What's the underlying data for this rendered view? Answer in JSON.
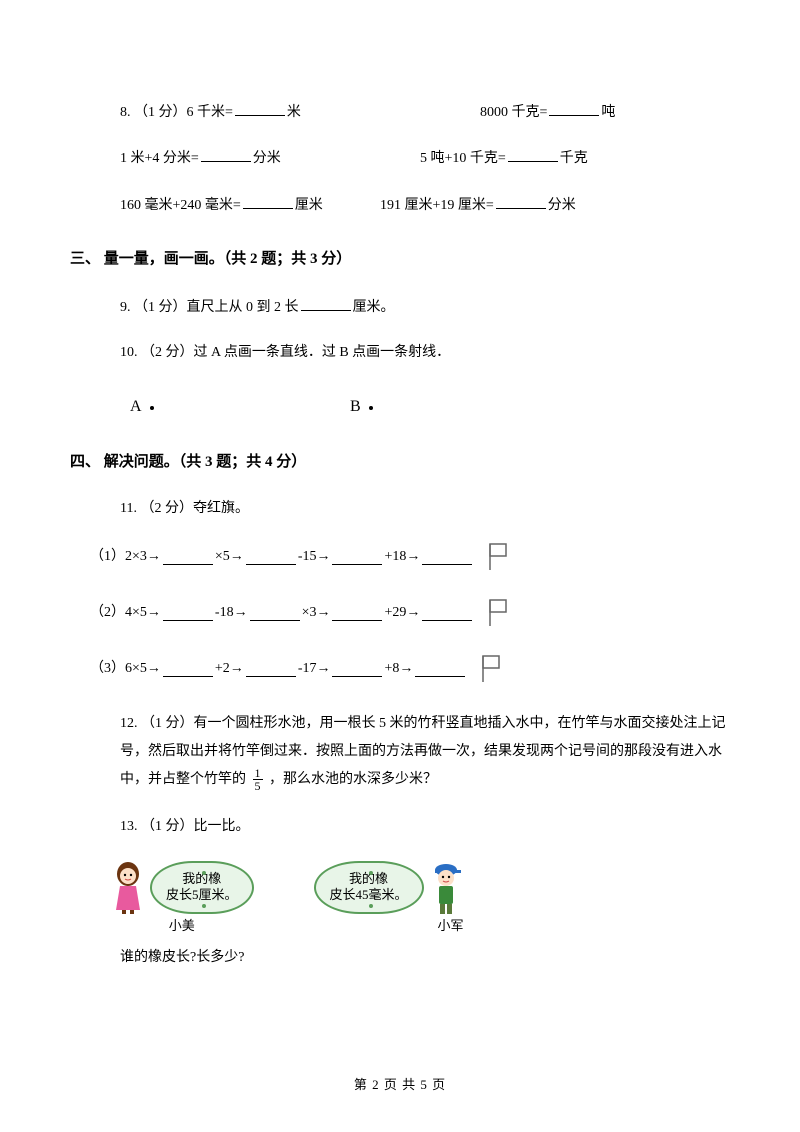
{
  "colors": {
    "text": "#000000",
    "background": "#ffffff",
    "bubble_fill": "#e8f5e8",
    "bubble_border": "#5a9e5a",
    "girl_hair": "#6b3410",
    "girl_dress": "#e85a9e",
    "boy_cap": "#2a6ec4",
    "boy_shirt": "#3a8a3a",
    "flag_stroke": "#666666"
  },
  "typography": {
    "body_fontsize": 14,
    "section_fontsize": 15,
    "section_weight": "bold",
    "font_family": "SimSun"
  },
  "q8": {
    "label": "8. （1 分）",
    "line1_a": "6 千米=",
    "line1_a_unit": "米",
    "line1_b": "8000 千克=",
    "line1_b_unit": "吨",
    "line2_a": "1 米+4 分米=",
    "line2_a_unit": "分米",
    "line2_b": "5 吨+10 千克=",
    "line2_b_unit": "千克",
    "line3_a": "160 毫米+240 毫米=",
    "line3_a_unit": "厘米",
    "line3_b": "191 厘米+19 厘米=",
    "line3_b_unit": "分米"
  },
  "section3": {
    "title": "三、 量一量，画一画。（共 2 题；共 3 分）",
    "q9": {
      "label": "9. （1 分）",
      "text_before": "直尺上从 0 到 2 长",
      "text_after": "厘米。"
    },
    "q10": {
      "label": "10. （2 分）",
      "text": "过 A 点画一条直线．过 B 点画一条射线．",
      "pointA": "A",
      "pointB": "B"
    }
  },
  "section4": {
    "title": "四、 解决问题。（共 3 题；共 4 分）",
    "q11": {
      "label": "11. （2 分）",
      "intro": "夺红旗。",
      "chains": [
        {
          "prefix": "（1）",
          "start": "2×3→",
          "ops": [
            "×5→",
            "-15→",
            "+18→"
          ]
        },
        {
          "prefix": "（2）",
          "start": "4×5→",
          "ops": [
            "-18→",
            "×3→",
            "+29→"
          ]
        },
        {
          "prefix": "（3）",
          "start": "6×5→",
          "ops": [
            "+2→",
            "-17→",
            "+8→"
          ]
        }
      ]
    },
    "q12": {
      "label": "12. （1 分）",
      "text_before": "有一个圆柱形水池，用一根长 5 米的竹秆竖直地插入水中，在竹竿与水面交接处注上记号，然后取出并将竹竿倒过来．按照上面的方法再做一次，结果发现两个记号间的那段没有进入水中，并占整个竹竿的",
      "fraction": {
        "num": "1",
        "den": "5"
      },
      "text_after": "，那么水池的水深多少米？"
    },
    "q13": {
      "label": "13. （1 分）",
      "intro": "比一比。",
      "girl": {
        "bubble_line1": "我的橡",
        "bubble_line2": "皮长5厘米。",
        "name": "小美"
      },
      "boy": {
        "bubble_line1": "我的橡",
        "bubble_line2": "皮长45毫米。",
        "name": "小军"
      },
      "question": "谁的橡皮长?长多少?"
    }
  },
  "footer": {
    "text": "第 2 页 共 5 页"
  }
}
